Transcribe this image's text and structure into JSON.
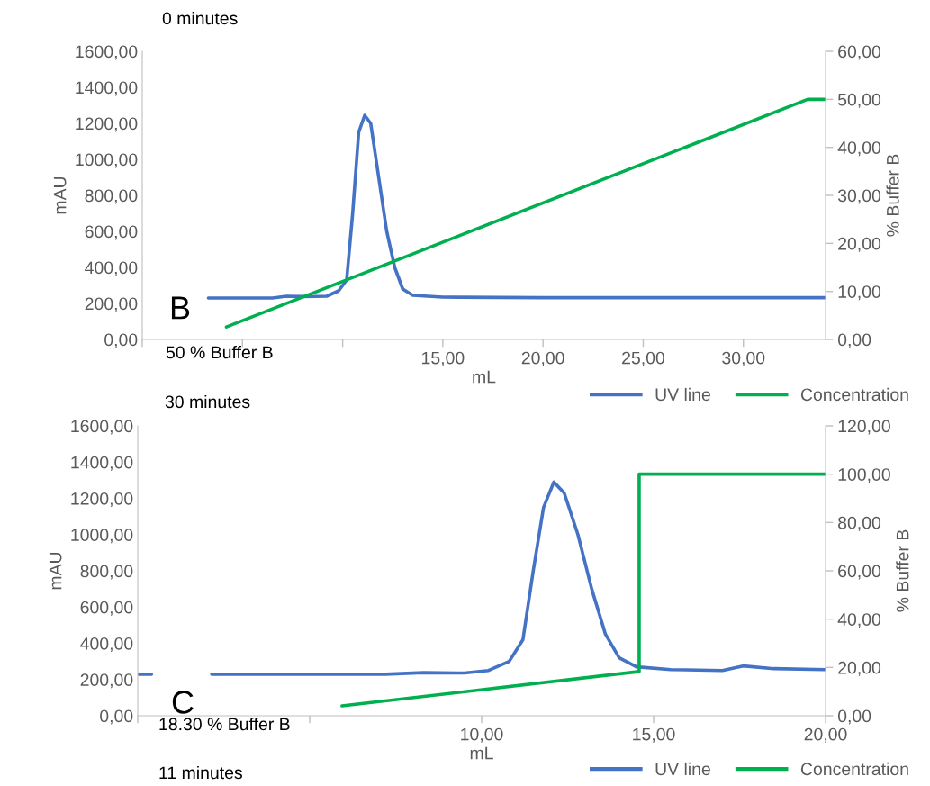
{
  "chart_data": [
    {
      "type": "line",
      "xlabel": "mL",
      "ylabel": "mAU",
      "y2label": "% Buffer B",
      "xlim": [
        0,
        34.1
      ],
      "xticks": [
        {
          "value": 0,
          "label": null
        },
        {
          "value": 5,
          "label": null
        },
        {
          "value": 10,
          "label": null
        },
        {
          "value": 15,
          "label": "15,00"
        },
        {
          "value": 20,
          "label": "20,00"
        },
        {
          "value": 25,
          "label": "25,00"
        },
        {
          "value": 30,
          "label": "30,00"
        }
      ],
      "ylim": [
        0,
        1600
      ],
      "yticks": [
        {
          "value": 0,
          "label": "0,00"
        },
        {
          "value": 200,
          "label": "200,00"
        },
        {
          "value": 400,
          "label": "400,00"
        },
        {
          "value": 600,
          "label": "600,00"
        },
        {
          "value": 800,
          "label": "800,00"
        },
        {
          "value": 1000,
          "label": "1000,00"
        },
        {
          "value": 1200,
          "label": "1200,00"
        },
        {
          "value": 1400,
          "label": "1400,00"
        },
        {
          "value": 1600,
          "label": "1600,00"
        }
      ],
      "y2lim": [
        0,
        60
      ],
      "y2ticks": [
        {
          "value": 0,
          "label": "0,00"
        },
        {
          "value": 10,
          "label": "10,00"
        },
        {
          "value": 20,
          "label": "20,00"
        },
        {
          "value": 30,
          "label": "30,00"
        },
        {
          "value": 40,
          "label": "40,00"
        },
        {
          "value": 50,
          "label": "50,00"
        },
        {
          "value": 60,
          "label": "60,00"
        }
      ],
      "series": [
        {
          "name": "UV line",
          "color": "#4472c4",
          "x": [
            3.3,
            6.5,
            7.2,
            8.0,
            9.2,
            9.8,
            10.2,
            10.5,
            10.8,
            11.1,
            11.4,
            11.8,
            12.2,
            12.6,
            13.0,
            13.5,
            15,
            20,
            34.1
          ],
          "values": [
            230,
            230,
            240,
            238,
            240,
            270,
            330,
            700,
            1150,
            1245,
            1200,
            900,
            600,
            400,
            280,
            245,
            235,
            232,
            232
          ]
        },
        {
          "name": "Concentration",
          "color": "#00b050",
          "axis": "y2",
          "x": [
            4.2,
            33.2,
            34.1
          ],
          "values": [
            2.6,
            50,
            50
          ]
        }
      ],
      "legend": "bottom right",
      "grid": false,
      "annotations": [
        "0 minutes",
        "B",
        "50 % Buffer B",
        "30 minutes"
      ]
    },
    {
      "type": "line",
      "xlabel": "mL",
      "ylabel": "mAU",
      "y2label": "% Buffer B",
      "xlim": [
        0,
        20
      ],
      "xticks": [
        {
          "value": 0,
          "label": null
        },
        {
          "value": 5,
          "label": null
        },
        {
          "value": 10,
          "label": "10,00"
        },
        {
          "value": 15,
          "label": "15,00"
        },
        {
          "value": 20,
          "label": "20,00"
        }
      ],
      "ylim": [
        0,
        1600
      ],
      "yticks": [
        {
          "value": 0,
          "label": "0,00"
        },
        {
          "value": 200,
          "label": "200,00"
        },
        {
          "value": 400,
          "label": "400,00"
        },
        {
          "value": 600,
          "label": "600,00"
        },
        {
          "value": 800,
          "label": "800,00"
        },
        {
          "value": 1000,
          "label": "1000,00"
        },
        {
          "value": 1200,
          "label": "1200,00"
        },
        {
          "value": 1400,
          "label": "1400,00"
        },
        {
          "value": 1600,
          "label": "1600,00"
        }
      ],
      "y2lim": [
        0,
        120
      ],
      "y2ticks": [
        {
          "value": 0,
          "label": "0,00"
        },
        {
          "value": 20,
          "label": "20,00"
        },
        {
          "value": 40,
          "label": "40,00"
        },
        {
          "value": 60,
          "label": "60,00"
        },
        {
          "value": 80,
          "label": "80,00"
        },
        {
          "value": 100,
          "label": "100,00"
        },
        {
          "value": 120,
          "label": "120,00"
        }
      ],
      "series": [
        {
          "name": "UV line",
          "color": "#4472c4",
          "x": [
            0,
            0.4,
            1.3,
            2.15,
            7.2,
            8.3,
            9.5,
            10.2,
            10.8,
            11.2,
            11.5,
            11.8,
            12.1,
            12.4,
            12.8,
            13.2,
            13.6,
            14.0,
            14.5,
            15.5,
            17.0,
            17.6,
            18.5,
            20
          ],
          "values": [
            229,
            229,
            null,
            229,
            229,
            238,
            236,
            250,
            300,
            420,
            800,
            1150,
            1290,
            1230,
            1000,
            700,
            450,
            320,
            270,
            255,
            250,
            275,
            260,
            255
          ]
        },
        {
          "name": "Concentration",
          "color": "#00b050",
          "axis": "y2",
          "x": [
            5.94,
            14.58,
            14.58,
            20
          ],
          "values": [
            4.1,
            18.3,
            100,
            100
          ]
        }
      ],
      "legend": "bottom right",
      "grid": false,
      "annotations": [
        "C",
        "18.30 % Buffer B",
        "11 minutes"
      ]
    }
  ]
}
